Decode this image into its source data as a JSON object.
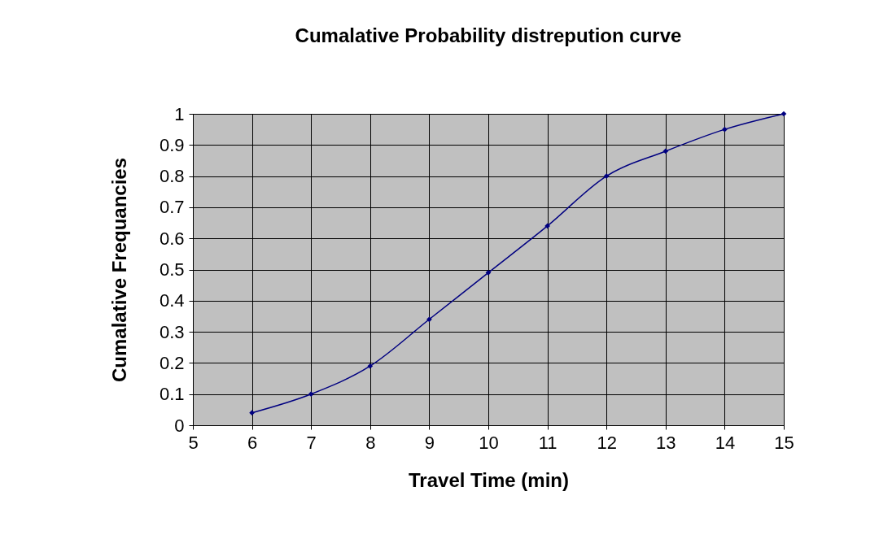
{
  "chart_data": {
    "type": "line",
    "title": "Cumalative Probability distrepution curve",
    "xlabel": "Travel Time (min)",
    "ylabel": "Cumalative Frequancies",
    "x": [
      6,
      7,
      8,
      9,
      10,
      11,
      12,
      13,
      14,
      15
    ],
    "series": [
      {
        "color": "#000080",
        "values": [
          0.04,
          0.1,
          0.19,
          0.34,
          0.49,
          0.64,
          0.8,
          0.88,
          0.95,
          1.0
        ]
      }
    ],
    "xlim": [
      5,
      15
    ],
    "xticks": [
      5,
      6,
      7,
      8,
      9,
      10,
      11,
      12,
      13,
      14,
      15
    ],
    "ylim": [
      0,
      1
    ],
    "yticks": [
      0,
      0.1,
      0.2,
      0.3,
      0.4,
      0.5,
      0.6,
      0.7,
      0.8,
      0.9,
      1
    ],
    "grid": true,
    "marker": "diamond",
    "line_style": "solid"
  }
}
